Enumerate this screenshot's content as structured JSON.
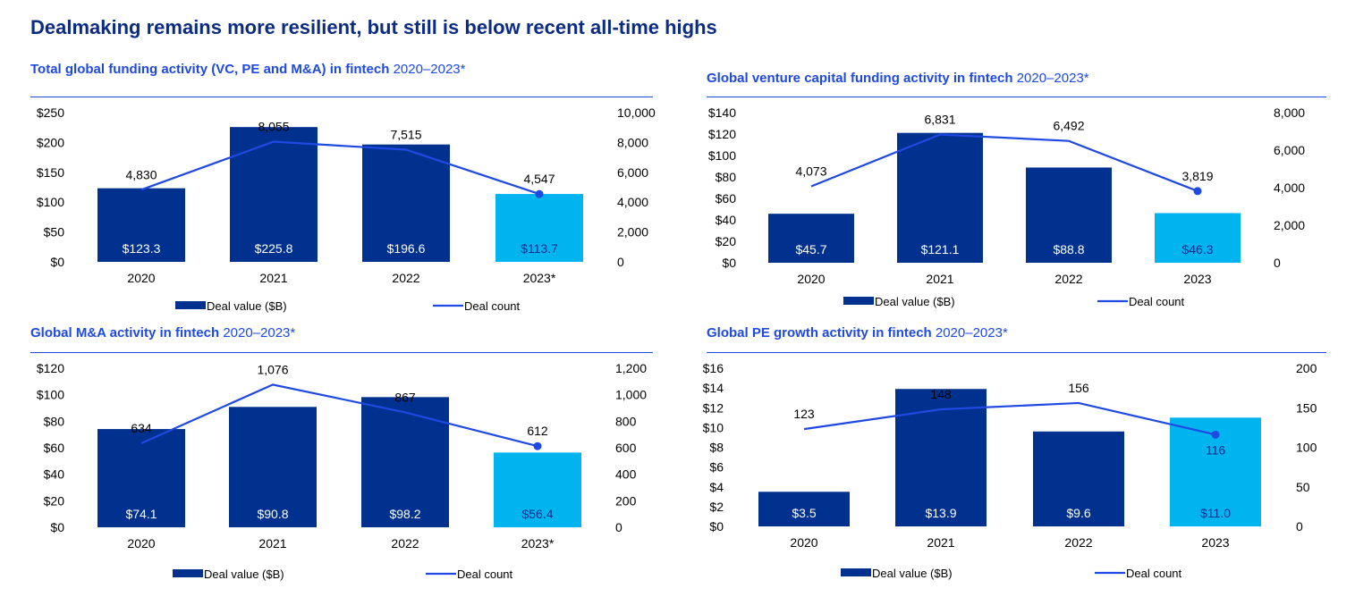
{
  "page": {
    "title": "Dealmaking remains more resilient, but still is below recent all-time highs"
  },
  "colors": {
    "title": "#0c2c84",
    "accent": "#1e49e2",
    "bar_dark": "#00318e",
    "bar_light": "#00b4f0"
  },
  "panels": [
    {
      "title": "Total global funding activity (VC, PE and M&A) in fintech",
      "years_label": "2020–2023*",
      "legend": {
        "bar": "Deal value ($B)",
        "line": "Deal count"
      }
    },
    {
      "title": "Global venture capital funding activity in fintech",
      "years_label": "2020–2023*",
      "legend": {
        "bar": "Deal value ($B)",
        "line": "Deal count"
      }
    },
    {
      "title": "Global M&A activity in fintech",
      "years_label": "2020–2023*",
      "legend": {
        "bar": "Deal value ($B)",
        "line": "Deal count"
      }
    },
    {
      "title": "Global PE growth activity in fintech",
      "years_label": "2020–2023*",
      "legend": {
        "bar": "Deal value ($B)",
        "line": "Deal count"
      }
    }
  ],
  "chart_data": [
    {
      "type": "bar+line",
      "title": "Total global funding activity (VC, PE and M&A) in fintech 2020–2023*",
      "categories": [
        "2020",
        "2021",
        "2022",
        "2023*"
      ],
      "series": [
        {
          "name": "Deal value ($B)",
          "type": "bar",
          "axis": "left",
          "values": [
            123.3,
            225.8,
            196.6,
            113.7
          ],
          "labels": [
            "$123.3",
            "$225.8",
            "$196.6",
            "$113.7"
          ]
        },
        {
          "name": "Deal count",
          "type": "line",
          "axis": "right",
          "values": [
            4830,
            8055,
            7515,
            4547
          ],
          "labels": [
            "4,830",
            "8,055",
            "7,515",
            "4,547"
          ]
        }
      ],
      "left_axis": {
        "range": [
          0,
          250
        ],
        "ticks": [
          "$0",
          "$50",
          "$100",
          "$150",
          "$200",
          "$250"
        ]
      },
      "right_axis": {
        "range": [
          0,
          10000
        ],
        "ticks": [
          "0",
          "2,000",
          "4,000",
          "6,000",
          "8,000",
          "10,000"
        ]
      },
      "highlight_last": true,
      "grid": false
    },
    {
      "type": "bar+line",
      "title": "Global venture capital funding activity in fintech 2020–2023*",
      "categories": [
        "2020",
        "2021",
        "2022",
        "2023"
      ],
      "series": [
        {
          "name": "Deal value ($B)",
          "type": "bar",
          "axis": "left",
          "values": [
            45.7,
            121.1,
            88.8,
            46.3
          ],
          "labels": [
            "$45.7",
            "$121.1",
            "$88.8",
            "$46.3"
          ]
        },
        {
          "name": "Deal count",
          "type": "line",
          "axis": "right",
          "values": [
            4073,
            6831,
            6492,
            3819
          ],
          "labels": [
            "4,073",
            "6,831",
            "6,492",
            "3,819"
          ]
        }
      ],
      "left_axis": {
        "range": [
          0,
          140
        ],
        "ticks": [
          "$0",
          "$20",
          "$40",
          "$60",
          "$80",
          "$100",
          "$120",
          "$140"
        ]
      },
      "right_axis": {
        "range": [
          0,
          8000
        ],
        "ticks": [
          "0",
          "2,000",
          "4,000",
          "6,000",
          "8,000"
        ]
      },
      "highlight_last": true,
      "grid": false
    },
    {
      "type": "bar+line",
      "title": "Global M&A activity in fintech 2020–2023*",
      "categories": [
        "2020",
        "2021",
        "2022",
        "2023*"
      ],
      "series": [
        {
          "name": "Deal value ($B)",
          "type": "bar",
          "axis": "left",
          "values": [
            74.1,
            90.8,
            98.2,
            56.4
          ],
          "labels": [
            "$74.1",
            "$90.8",
            "$98.2",
            "$56.4"
          ]
        },
        {
          "name": "Deal count",
          "type": "line",
          "axis": "right",
          "values": [
            634,
            1076,
            867,
            612
          ],
          "labels": [
            "634",
            "1,076",
            "867",
            "612"
          ]
        }
      ],
      "left_axis": {
        "range": [
          0,
          120
        ],
        "ticks": [
          "$0",
          "$20",
          "$40",
          "$60",
          "$80",
          "$100",
          "$120"
        ]
      },
      "right_axis": {
        "range": [
          0,
          1200
        ],
        "ticks": [
          "0",
          "200",
          "400",
          "600",
          "800",
          "1,000",
          "1,200"
        ]
      },
      "highlight_last": true,
      "grid": false
    },
    {
      "type": "bar+line",
      "title": "Global PE growth activity in fintech 2020–2023*",
      "categories": [
        "2020",
        "2021",
        "2022",
        "2023"
      ],
      "series": [
        {
          "name": "Deal value ($B)",
          "type": "bar",
          "axis": "left",
          "values": [
            3.5,
            13.9,
            9.6,
            11.0
          ],
          "labels": [
            "$3.5",
            "$13.9",
            "$9.6",
            "$11.0"
          ]
        },
        {
          "name": "Deal count",
          "type": "line",
          "axis": "right",
          "values": [
            123,
            148,
            156,
            116
          ],
          "labels": [
            "123",
            "148",
            "156",
            "116"
          ]
        }
      ],
      "left_axis": {
        "range": [
          0,
          16
        ],
        "ticks": [
          "$0",
          "$2",
          "$4",
          "$6",
          "$8",
          "$10",
          "$12",
          "$14",
          "$16"
        ]
      },
      "right_axis": {
        "range": [
          0,
          200
        ],
        "ticks": [
          "0",
          "50",
          "100",
          "150",
          "200"
        ]
      },
      "highlight_last": true,
      "grid": false
    }
  ]
}
